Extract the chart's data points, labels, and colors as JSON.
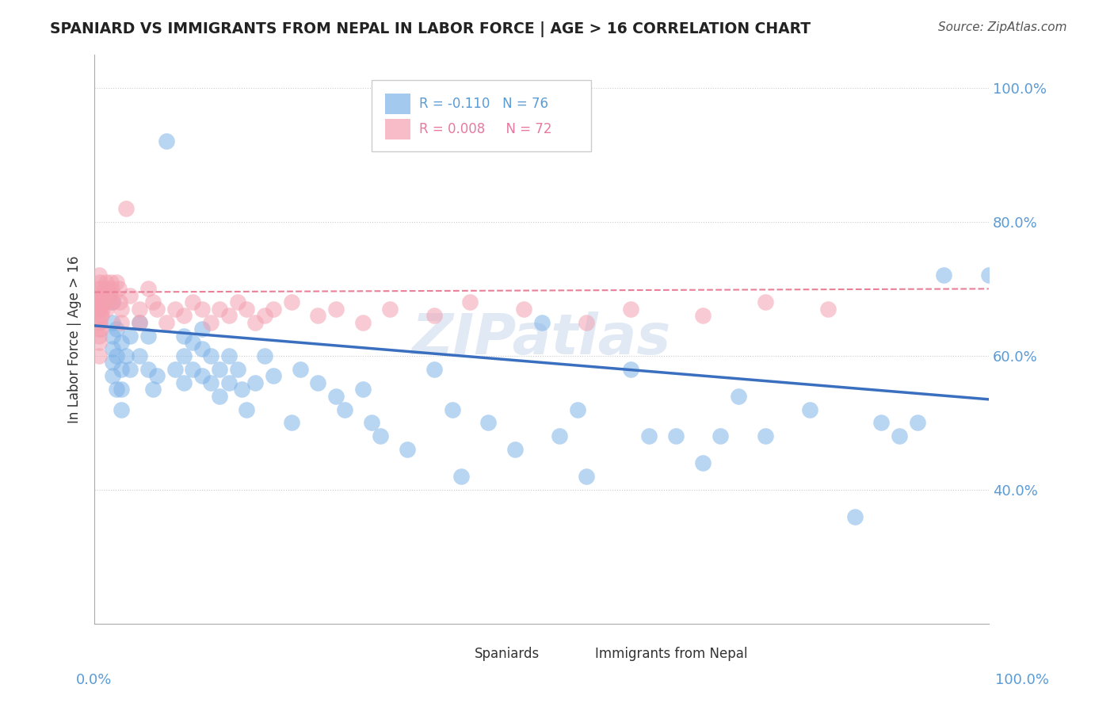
{
  "title": "SPANIARD VS IMMIGRANTS FROM NEPAL IN LABOR FORCE | AGE > 16 CORRELATION CHART",
  "source": "Source: ZipAtlas.com",
  "ylabel": "In Labor Force | Age > 16",
  "blue_color": "#7EB3E8",
  "pink_color": "#F4A0B0",
  "blue_line_color": "#3A6FBF",
  "pink_line_color": "#E88098",
  "legend_r_blue": "R = -0.110",
  "legend_n_blue": "N = 76",
  "legend_r_pink": "R = 0.008",
  "legend_n_pink": "N = 72",
  "watermark": "ZIPatlas",
  "blue_scatter_x": [
    0.02,
    0.02,
    0.02,
    0.02,
    0.02,
    0.02,
    0.025,
    0.025,
    0.025,
    0.03,
    0.03,
    0.03,
    0.03,
    0.035,
    0.04,
    0.04,
    0.05,
    0.05,
    0.06,
    0.06,
    0.065,
    0.07,
    0.08,
    0.09,
    0.1,
    0.1,
    0.1,
    0.11,
    0.11,
    0.12,
    0.12,
    0.12,
    0.13,
    0.13,
    0.14,
    0.14,
    0.15,
    0.15,
    0.16,
    0.165,
    0.17,
    0.18,
    0.19,
    0.2,
    0.22,
    0.23,
    0.25,
    0.27,
    0.28,
    0.3,
    0.31,
    0.32,
    0.35,
    0.38,
    0.4,
    0.41,
    0.44,
    0.47,
    0.5,
    0.52,
    0.54,
    0.55,
    0.6,
    0.62,
    0.65,
    0.68,
    0.7,
    0.72,
    0.75,
    0.8,
    0.85,
    0.88,
    0.9,
    0.92,
    0.95,
    1.0
  ],
  "blue_scatter_y": [
    0.68,
    0.65,
    0.63,
    0.61,
    0.59,
    0.57,
    0.64,
    0.6,
    0.55,
    0.62,
    0.58,
    0.55,
    0.52,
    0.6,
    0.63,
    0.58,
    0.65,
    0.6,
    0.63,
    0.58,
    0.55,
    0.57,
    0.92,
    0.58,
    0.63,
    0.6,
    0.56,
    0.62,
    0.58,
    0.64,
    0.61,
    0.57,
    0.6,
    0.56,
    0.58,
    0.54,
    0.6,
    0.56,
    0.58,
    0.55,
    0.52,
    0.56,
    0.6,
    0.57,
    0.5,
    0.58,
    0.56,
    0.54,
    0.52,
    0.55,
    0.5,
    0.48,
    0.46,
    0.58,
    0.52,
    0.42,
    0.5,
    0.46,
    0.65,
    0.48,
    0.52,
    0.42,
    0.58,
    0.48,
    0.48,
    0.44,
    0.48,
    0.54,
    0.48,
    0.52,
    0.36,
    0.5,
    0.48,
    0.5,
    0.72,
    0.72
  ],
  "pink_scatter_x": [
    0.005,
    0.005,
    0.005,
    0.005,
    0.005,
    0.005,
    0.005,
    0.005,
    0.005,
    0.006,
    0.006,
    0.006,
    0.006,
    0.007,
    0.007,
    0.007,
    0.007,
    0.008,
    0.008,
    0.009,
    0.009,
    0.01,
    0.011,
    0.012,
    0.013,
    0.013,
    0.014,
    0.015,
    0.016,
    0.017,
    0.018,
    0.019,
    0.02,
    0.022,
    0.025,
    0.027,
    0.028,
    0.03,
    0.03,
    0.035,
    0.04,
    0.05,
    0.05,
    0.06,
    0.065,
    0.07,
    0.08,
    0.09,
    0.1,
    0.11,
    0.12,
    0.13,
    0.14,
    0.15,
    0.16,
    0.17,
    0.18,
    0.19,
    0.2,
    0.22,
    0.25,
    0.27,
    0.3,
    0.33,
    0.38,
    0.42,
    0.48,
    0.55,
    0.6,
    0.68,
    0.75,
    0.82
  ],
  "pink_scatter_y": [
    0.72,
    0.7,
    0.68,
    0.67,
    0.65,
    0.64,
    0.63,
    0.62,
    0.6,
    0.71,
    0.69,
    0.67,
    0.65,
    0.7,
    0.68,
    0.66,
    0.64,
    0.68,
    0.66,
    0.69,
    0.67,
    0.68,
    0.7,
    0.69,
    0.71,
    0.67,
    0.69,
    0.68,
    0.7,
    0.69,
    0.71,
    0.7,
    0.68,
    0.69,
    0.71,
    0.7,
    0.68,
    0.65,
    0.67,
    0.82,
    0.69,
    0.65,
    0.67,
    0.7,
    0.68,
    0.67,
    0.65,
    0.67,
    0.66,
    0.68,
    0.67,
    0.65,
    0.67,
    0.66,
    0.68,
    0.67,
    0.65,
    0.66,
    0.67,
    0.68,
    0.66,
    0.67,
    0.65,
    0.67,
    0.66,
    0.68,
    0.67,
    0.65,
    0.67,
    0.66,
    0.68,
    0.67
  ],
  "xlim": [
    0.0,
    1.0
  ],
  "ylim": [
    0.2,
    1.05
  ],
  "blue_trend_y_start": 0.645,
  "blue_trend_y_end": 0.535,
  "pink_trend_y_start": 0.695,
  "pink_trend_y_end": 0.7,
  "yticks": [
    0.4,
    0.6,
    0.8,
    1.0
  ],
  "ytick_labels": [
    "40.0%",
    "60.0%",
    "80.0%",
    "100.0%"
  ],
  "label_color": "#5B9BD5",
  "legend_label_blue": "Spaniards",
  "legend_label_pink": "Immigrants from Nepal"
}
